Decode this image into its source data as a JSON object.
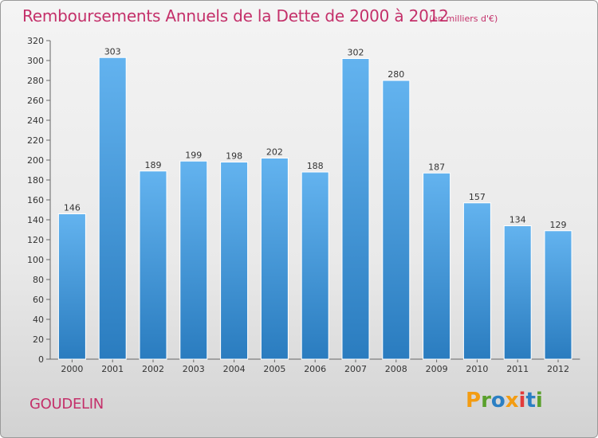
{
  "header": {
    "title": "Remboursements Annuels de la Dette de 2000 à 2012",
    "subtitle": "(en milliers d'€)"
  },
  "footer": {
    "commune": "GOUDELIN",
    "logo_text": "Proxiti",
    "logo_colors": [
      "#f39c12",
      "#5aa02c",
      "#2b7fc3",
      "#f39c12",
      "#e33b3b",
      "#2b7fc3",
      "#5aa02c"
    ]
  },
  "colors": {
    "bar_light": "#63b3ef",
    "bar_dark": "#2a7cbf",
    "title": "#c4306a"
  },
  "chart_data": {
    "type": "bar",
    "title": "Remboursements Annuels de la Dette de 2000 à 2012",
    "subtitle": "(en milliers d'€)",
    "categories": [
      "2000",
      "2001",
      "2002",
      "2003",
      "2004",
      "2005",
      "2006",
      "2007",
      "2008",
      "2009",
      "2010",
      "2011",
      "2012"
    ],
    "values": [
      146,
      303,
      189,
      199,
      198,
      202,
      188,
      302,
      280,
      187,
      157,
      134,
      129
    ],
    "ylim": [
      0,
      320
    ],
    "yticks": [
      0,
      20,
      40,
      60,
      80,
      100,
      120,
      140,
      160,
      180,
      200,
      220,
      240,
      260,
      280,
      300,
      320
    ],
    "grid": false,
    "legend": "none"
  }
}
